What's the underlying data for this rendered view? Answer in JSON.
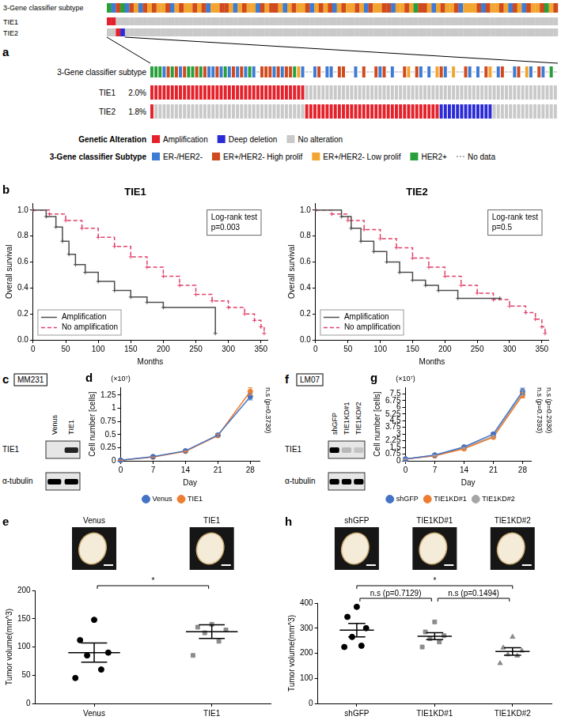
{
  "chart_data": [
    {
      "panel": "b",
      "type": "step",
      "title": "TIE1",
      "note": [
        "Log-rank test",
        "p=0.003"
      ],
      "x_label": "Months",
      "y_label": "Overall survival",
      "xlim": [
        0,
        360
      ],
      "xticks": [
        0,
        50,
        100,
        150,
        200,
        250,
        300,
        350
      ],
      "ylim": [
        0,
        1.05
      ],
      "yticks": [
        {
          "value": 0,
          "label": "0.0"
        },
        0.2,
        0.4,
        0.6,
        0.8,
        {
          "value": 1,
          "label": "1.0"
        }
      ],
      "grid": false,
      "legend": "lower left",
      "series": [
        {
          "name": "Amplification",
          "color": "#4d4d4d",
          "line_style": "solid",
          "marker": "cross",
          "x": [
            0,
            20,
            35,
            45,
            55,
            65,
            80,
            100,
            125,
            150,
            175,
            200,
            280
          ],
          "values": [
            1,
            0.95,
            0.87,
            0.76,
            0.66,
            0.58,
            0.52,
            0.45,
            0.38,
            0.33,
            0.29,
            0.25,
            0.05
          ]
        },
        {
          "name": "No amplification",
          "color": "#e0406a",
          "line_style": "dashed",
          "marker": "cross",
          "x": [
            0,
            25,
            50,
            75,
            100,
            125,
            150,
            175,
            200,
            225,
            250,
            275,
            300,
            325,
            340,
            350,
            355
          ],
          "values": [
            1,
            0.97,
            0.92,
            0.86,
            0.79,
            0.72,
            0.64,
            0.56,
            0.49,
            0.42,
            0.35,
            0.3,
            0.25,
            0.2,
            0.15,
            0.1,
            0.05
          ]
        }
      ]
    },
    {
      "type": "step",
      "title": "TIE2",
      "note": [
        "Log-rank test",
        "p=0.5"
      ],
      "x_label": "Months",
      "y_label": "Overall survival",
      "xlim": [
        0,
        360
      ],
      "xticks": [
        0,
        50,
        100,
        150,
        200,
        250,
        300,
        350
      ],
      "ylim": [
        0,
        1.05
      ],
      "yticks": [
        {
          "value": 0,
          "label": "0.0"
        },
        0.2,
        0.4,
        0.6,
        0.8,
        {
          "value": 1,
          "label": "1.0"
        }
      ],
      "grid": false,
      "legend": "lower left",
      "series": [
        {
          "name": "Amplification",
          "color": "#4d4d4d",
          "line_style": "solid",
          "marker": "cross",
          "x": [
            0,
            40,
            55,
            70,
            90,
            110,
            130,
            150,
            170,
            190,
            220,
            285
          ],
          "values": [
            1,
            0.95,
            0.86,
            0.76,
            0.68,
            0.6,
            0.52,
            0.46,
            0.42,
            0.38,
            0.32,
            0.32
          ]
        },
        {
          "name": "No amplification",
          "color": "#e0406a",
          "line_style": "dashed",
          "marker": "cross",
          "x": [
            0,
            25,
            50,
            75,
            100,
            125,
            150,
            175,
            200,
            225,
            250,
            275,
            300,
            325,
            340,
            350,
            355
          ],
          "values": [
            1,
            0.97,
            0.92,
            0.85,
            0.78,
            0.71,
            0.63,
            0.56,
            0.49,
            0.42,
            0.36,
            0.31,
            0.26,
            0.21,
            0.16,
            0.1,
            0.05
          ]
        }
      ]
    },
    {
      "panel": "d",
      "type": "line",
      "x_label": "Day",
      "y_label": "Cell number [cells]",
      "y_unit": "(×10⁷)",
      "annotations": [
        "n.s (p=0.3730)"
      ],
      "x": [
        0,
        7,
        14,
        21,
        28
      ],
      "xlim": [
        0,
        30
      ],
      "xticks": [
        0,
        7,
        14,
        21,
        28
      ],
      "ylim": [
        0,
        1.4
      ],
      "yticks": [
        0,
        0.25,
        0.5,
        0.75,
        1,
        1.25
      ],
      "grid": false,
      "legend": "bottom",
      "series": [
        {
          "name": "Venus",
          "color": "#4472c4",
          "marker": "circle",
          "values": [
            0.01,
            0.08,
            0.19,
            0.49,
            1.22
          ],
          "errors": [
            0.002,
            0.005,
            0.01,
            0.02,
            0.06
          ]
        },
        {
          "name": "TIE1",
          "color": "#ed7d31",
          "marker": "circle",
          "values": [
            0.01,
            0.07,
            0.18,
            0.48,
            1.32
          ],
          "errors": [
            0.002,
            0.004,
            0.01,
            0.03,
            0.07
          ]
        }
      ]
    },
    {
      "panel": "e",
      "type": "dot",
      "y_label": "Tumor volume(mm^3)",
      "ylim": [
        0,
        200
      ],
      "yticks": [
        0,
        50,
        100,
        150,
        200
      ],
      "grid": false,
      "significance": [
        {
          "text": "*",
          "from": "Venus",
          "to": "TIE1"
        }
      ],
      "series": [
        {
          "name": "Venus",
          "color": "#000000",
          "marker": "circle",
          "values": [
            148,
            112,
            90,
            85,
            60,
            45
          ],
          "mean": 90,
          "sem": 17
        },
        {
          "name": "TIE1",
          "color": "#8c8c8c",
          "marker": "square",
          "values": [
            140,
            135,
            130,
            125,
            110,
            85
          ],
          "mean": 127,
          "sem": 12
        }
      ]
    },
    {
      "panel": "g",
      "type": "line",
      "x_label": "Day",
      "y_label": "Cell number [cells]",
      "y_unit": "(×10⁷)",
      "annotations": [
        "n.s (p=0.7393)",
        "n.s (p=0.2930)"
      ],
      "x": [
        0,
        7,
        14,
        21,
        28
      ],
      "xlim": [
        0,
        30
      ],
      "xticks": [
        0,
        7,
        14,
        21,
        28
      ],
      "ylim": [
        0,
        8.25
      ],
      "yticks": [
        0,
        0.75,
        1.5,
        2.25,
        3,
        3.75,
        4.5,
        5.25,
        6,
        6.75,
        7.5
      ],
      "grid": false,
      "legend": "bottom",
      "series": [
        {
          "name": "shGFP",
          "color": "#4472c4",
          "marker": "circle",
          "values": [
            0.2,
            0.65,
            1.55,
            3.0,
            7.8
          ],
          "errors": [
            0.02,
            0.04,
            0.08,
            0.12,
            0.35
          ]
        },
        {
          "name": "TIE1KD#1",
          "color": "#ed7d31",
          "marker": "circle",
          "values": [
            0.2,
            0.55,
            1.35,
            2.65,
            7.35
          ],
          "errors": [
            0.02,
            0.04,
            0.06,
            0.1,
            0.3
          ]
        },
        {
          "name": "TIE1KD#2",
          "color": "#a5a5a5",
          "marker": "circle",
          "values": [
            0.2,
            0.6,
            1.45,
            2.75,
            7.6
          ],
          "errors": [
            0.02,
            0.04,
            0.07,
            0.1,
            0.3
          ]
        }
      ]
    },
    {
      "panel": "h",
      "type": "dot",
      "y_label": "Tumor volume(mm^3)",
      "ylim": [
        0,
        400
      ],
      "yticks": [
        0,
        100,
        200,
        300,
        400
      ],
      "grid": false,
      "significance": [
        {
          "text": "n.s (p=0.7129)",
          "from": "shGFP",
          "to": "TIE1KD#1"
        },
        {
          "text": "n.s (p=0.1494)",
          "from": "TIE1KD#1",
          "to": "TIE1KD#2"
        },
        {
          "text": "*",
          "from": "shGFP",
          "to": "TIE1KD#2"
        }
      ],
      "series": [
        {
          "name": "shGFP",
          "color": "#000000",
          "marker": "circle",
          "values": [
            385,
            345,
            300,
            265,
            230,
            225
          ],
          "mean": 292,
          "sem": 27
        },
        {
          "name": "TIE1KD#1",
          "color": "#8c8c8c",
          "marker": "square",
          "values": [
            325,
            285,
            270,
            258,
            245,
            225
          ],
          "mean": 268,
          "sem": 14
        },
        {
          "name": "TIE1KD#2",
          "color": "#8c8c8c",
          "marker": "triangle",
          "values": [
            265,
            222,
            210,
            195,
            190,
            160
          ],
          "mean": 207,
          "sem": 15
        }
      ]
    }
  ],
  "diagrams": [
    {
      "panel": "a",
      "type": "oncoprint",
      "track_label": "3-Gene classifier subtype",
      "subtypes": [
        {
          "name": "ER-/HER2-",
          "color": "#3d7bd4"
        },
        {
          "name": "ER+/HER2- High prolif",
          "color": "#cf4a1e"
        },
        {
          "name": "ER+/HER2- Low prolif",
          "color": "#f2a531"
        },
        {
          "name": "HER2+",
          "color": "#27a03b"
        }
      ],
      "no_data": "No data",
      "alterations": [
        {
          "name": "Amplification",
          "color": "#e3222b"
        },
        {
          "name": "Deep deletion",
          "color": "#2a2ad6"
        },
        {
          "name": "No alteration",
          "color": "#c9c9c9"
        }
      ],
      "legend_titles": [
        "Genetic Alteration",
        "3-Gene classifier Subtype"
      ],
      "overview": {
        "subtype": [
          3,
          0,
          1,
          3,
          0,
          1,
          2,
          0,
          1,
          2,
          1,
          2,
          2,
          1,
          0,
          2,
          1,
          2,
          2,
          1,
          2,
          1,
          0,
          2,
          2,
          1,
          1,
          2,
          0,
          2,
          1,
          2,
          2,
          0,
          1,
          2,
          1,
          1,
          2,
          0,
          2,
          1,
          2,
          2,
          1,
          0,
          2,
          1,
          2,
          1,
          0,
          2,
          1,
          2,
          2,
          1,
          2,
          0,
          1,
          2,
          2,
          1,
          1,
          0,
          2,
          2,
          1,
          2,
          3,
          1,
          1,
          2,
          0,
          2,
          1,
          2,
          2,
          1,
          0,
          2,
          2,
          2,
          1,
          0,
          1,
          2,
          2,
          1,
          2,
          0,
          1,
          2,
          0,
          1,
          2,
          2,
          1,
          3,
          2,
          1
        ],
        "genes": [
          {
            "name": "TIE1",
            "alteration_runs": [
              [
                0,
                2
              ],
              [
                2,
                98
              ]
            ]
          },
          {
            "name": "TIE2",
            "alteration_runs": [
              [
                2,
                2
              ],
              [
                0,
                1
              ],
              [
                1,
                1
              ],
              [
                2,
                96
              ]
            ]
          }
        ]
      },
      "zoom": {
        "subtype": [
          3,
          3,
          3,
          0,
          1,
          3,
          1,
          0,
          1,
          3,
          3,
          1,
          3,
          1,
          0,
          0,
          1,
          0,
          3,
          0,
          1,
          0,
          1,
          0,
          3,
          0,
          null,
          1,
          1,
          1,
          0,
          1,
          0,
          1,
          1,
          3,
          2,
          0,
          null,
          null,
          0,
          1,
          null,
          0,
          0,
          null,
          1,
          1,
          null,
          null,
          0,
          null,
          1,
          null,
          null,
          1,
          0,
          1,
          null,
          0,
          null,
          null,
          1,
          2,
          null,
          1,
          0,
          null,
          0,
          null,
          2,
          1,
          0,
          null,
          2,
          null,
          null,
          1,
          0,
          null,
          0,
          null,
          1,
          2,
          null,
          0,
          1,
          null,
          null,
          0,
          1,
          null,
          2,
          0,
          null,
          1,
          0,
          null,
          3,
          null
        ],
        "genes": [
          {
            "name": "TIE1",
            "percent": "2.0%",
            "alteration_runs": [
              [
                0,
                38
              ],
              [
                2,
                62
              ]
            ]
          },
          {
            "name": "TIE2",
            "percent": "1.8%",
            "alteration_runs": [
              [
                0,
                1
              ],
              [
                2,
                37
              ],
              [
                0,
                33
              ],
              [
                1,
                13
              ],
              [
                2,
                16
              ]
            ]
          }
        ]
      }
    },
    {
      "panel": "c",
      "type": "blot",
      "cell_line": "MM231",
      "lanes": [
        "Venus",
        "TIE1"
      ],
      "rows": [
        {
          "name": "TIE1",
          "bands": [
            0,
            0.85
          ]
        },
        {
          "name": "α-tubulin",
          "bands": [
            1,
            1
          ]
        }
      ]
    },
    {
      "panel": "f",
      "type": "blot",
      "cell_line": "LM07",
      "lanes": [
        "shGFP",
        "TIE1KD#1",
        "TIE1KD#2"
      ],
      "rows": [
        {
          "name": "TIE1",
          "bands": [
            1,
            0.2,
            0.15
          ]
        },
        {
          "name": "α-tubulin",
          "bands": [
            1,
            1,
            1
          ]
        }
      ]
    }
  ]
}
